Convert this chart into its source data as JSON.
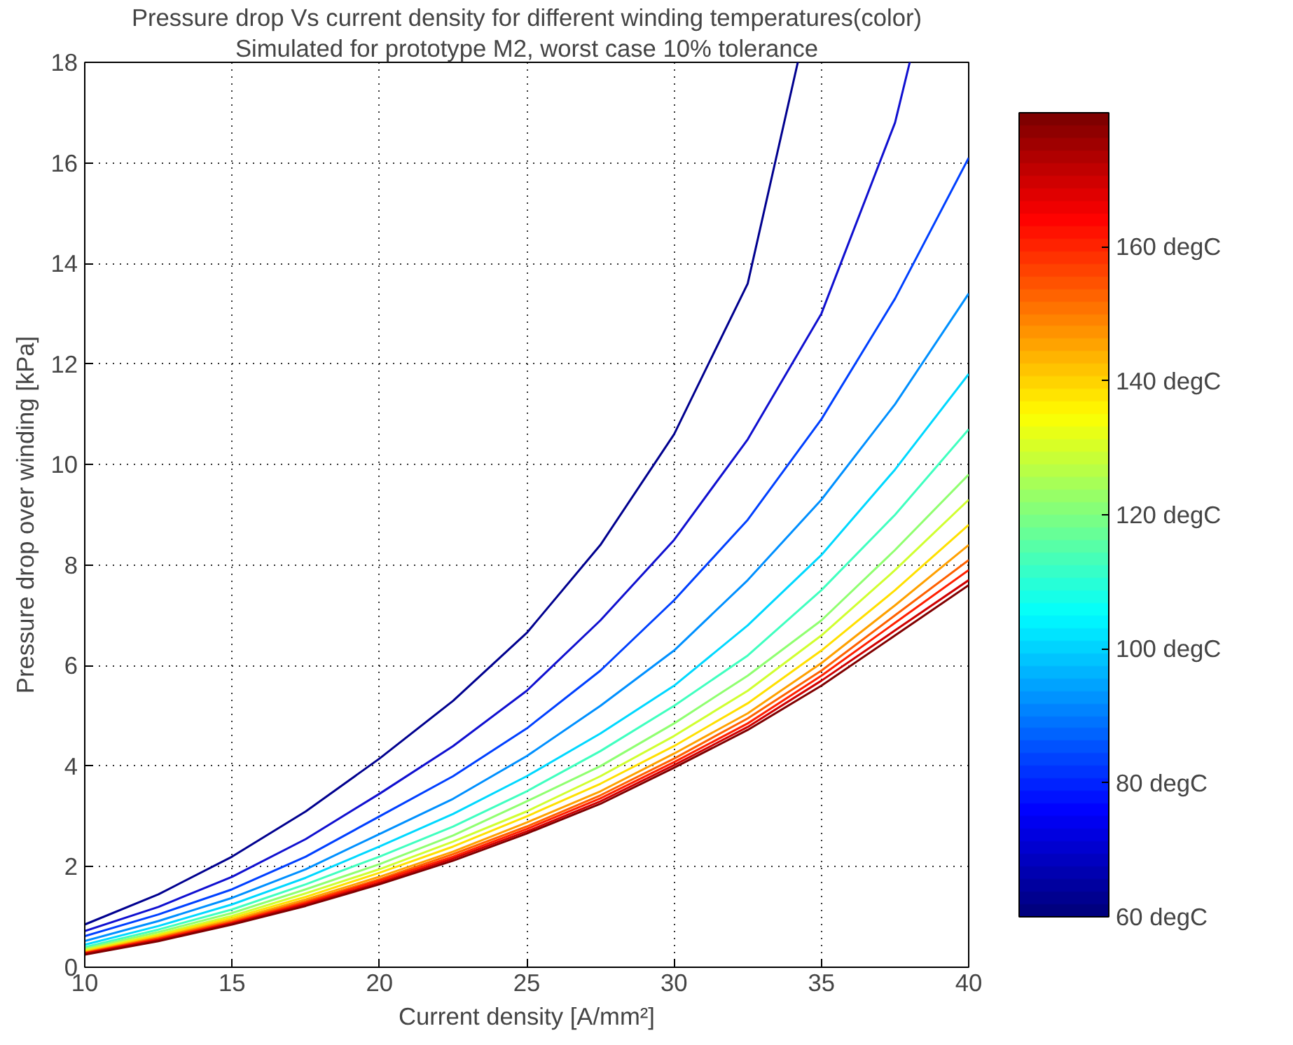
{
  "chart_data": {
    "type": "line",
    "title": "Pressure drop Vs current density for different winding temperatures(color)",
    "subtitle": "Simulated for prototype M2, worst case 10% tolerance",
    "xlabel": "Current density [A/mm²]",
    "ylabel": "Pressure drop over winding [kPa]",
    "x": [
      10,
      12.5,
      15,
      17.5,
      20,
      22.5,
      25,
      27.5,
      30,
      32.5,
      35,
      37.5,
      40
    ],
    "series": [
      {
        "color": "#00008f",
        "x": [
          10,
          12.5,
          15,
          17.5,
          20,
          22.5,
          25,
          27.5,
          30,
          32.5,
          34.2
        ],
        "values": [
          0.85,
          1.45,
          2.2,
          3.1,
          4.15,
          5.3,
          6.65,
          8.4,
          10.6,
          13.6,
          18
        ]
      },
      {
        "color": "#1010d0",
        "x": [
          10,
          12.5,
          15,
          17.5,
          20,
          22.5,
          25,
          27.5,
          30,
          32.5,
          35,
          37.5,
          38
        ],
        "values": [
          0.72,
          1.2,
          1.8,
          2.55,
          3.45,
          4.4,
          5.5,
          6.9,
          8.5,
          10.5,
          13.0,
          16.8,
          18
        ]
      },
      {
        "color": "#0040ff",
        "values": [
          0.62,
          1.05,
          1.55,
          2.2,
          3.0,
          3.8,
          4.75,
          5.9,
          7.3,
          8.9,
          10.9,
          13.3,
          16.1
        ]
      },
      {
        "color": "#0090ff",
        "values": [
          0.52,
          0.92,
          1.38,
          1.95,
          2.65,
          3.35,
          4.2,
          5.2,
          6.3,
          7.7,
          9.3,
          11.2,
          13.4
        ]
      },
      {
        "color": "#00d8ff",
        "values": [
          0.45,
          0.82,
          1.25,
          1.78,
          2.4,
          3.05,
          3.8,
          4.65,
          5.6,
          6.8,
          8.2,
          9.9,
          11.8
        ]
      },
      {
        "color": "#40ffbf",
        "values": [
          0.4,
          0.75,
          1.15,
          1.65,
          2.2,
          2.8,
          3.5,
          4.3,
          5.2,
          6.2,
          7.5,
          9.0,
          10.7
        ]
      },
      {
        "color": "#90ff70",
        "values": [
          0.37,
          0.7,
          1.08,
          1.55,
          2.05,
          2.62,
          3.3,
          4.0,
          4.85,
          5.8,
          6.9,
          8.3,
          9.8
        ]
      },
      {
        "color": "#d0ff30",
        "values": [
          0.34,
          0.66,
          1.02,
          1.47,
          1.95,
          2.5,
          3.1,
          3.8,
          4.6,
          5.5,
          6.6,
          7.9,
          9.3
        ]
      },
      {
        "color": "#ffe000",
        "values": [
          0.32,
          0.63,
          0.98,
          1.4,
          1.88,
          2.4,
          3.0,
          3.65,
          4.4,
          5.25,
          6.3,
          7.5,
          8.8
        ]
      },
      {
        "color": "#ffa000",
        "values": [
          0.3,
          0.6,
          0.94,
          1.35,
          1.8,
          2.3,
          2.88,
          3.5,
          4.25,
          5.05,
          6.05,
          7.2,
          8.4
        ]
      },
      {
        "color": "#ff6000",
        "values": [
          0.29,
          0.58,
          0.91,
          1.31,
          1.75,
          2.25,
          2.8,
          3.42,
          4.15,
          4.95,
          5.9,
          7.0,
          8.1
        ]
      },
      {
        "color": "#ff2000",
        "values": [
          0.28,
          0.56,
          0.89,
          1.28,
          1.72,
          2.2,
          2.75,
          3.36,
          4.08,
          4.85,
          5.8,
          6.85,
          7.9
        ]
      },
      {
        "color": "#d00000",
        "values": [
          0.27,
          0.54,
          0.87,
          1.25,
          1.68,
          2.16,
          2.7,
          3.3,
          4.02,
          4.78,
          5.7,
          6.7,
          7.7
        ]
      },
      {
        "color": "#800000",
        "values": [
          0.25,
          0.52,
          0.85,
          1.22,
          1.65,
          2.12,
          2.66,
          3.25,
          3.97,
          4.72,
          5.6,
          6.6,
          7.6
        ]
      }
    ],
    "xlim": [
      10,
      40
    ],
    "xticks": [
      10,
      15,
      20,
      25,
      30,
      35,
      40
    ],
    "ylim": [
      0,
      18
    ],
    "yticks": [
      0,
      2,
      4,
      6,
      8,
      10,
      12,
      14,
      16,
      18
    ],
    "clim": [
      60,
      180
    ],
    "cticks": [
      {
        "value": 60,
        "label": "60  degC"
      },
      {
        "value": 80,
        "label": "80  degC"
      },
      {
        "value": 100,
        "label": "100 degC"
      },
      {
        "value": 120,
        "label": "120 degC"
      },
      {
        "value": 140,
        "label": "140 degC"
      },
      {
        "value": 160,
        "label": "160 degC"
      }
    ],
    "grid": true,
    "marker": "none",
    "line_style": "solid"
  }
}
